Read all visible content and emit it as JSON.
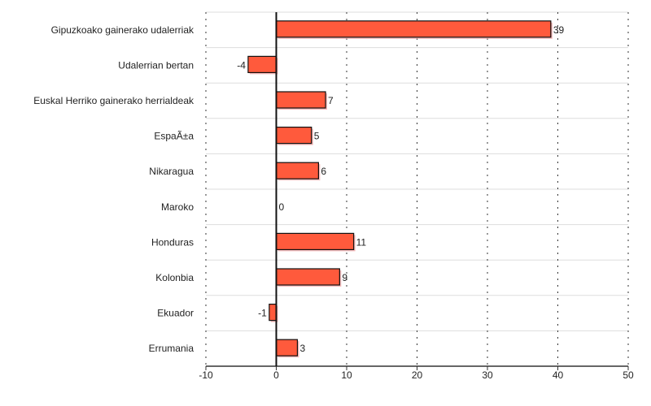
{
  "chart_data": {
    "type": "bar",
    "orientation": "horizontal",
    "categories": [
      "Gipuzkoako gainerako udalerriak",
      "Udalerrian bertan",
      "Euskal Herriko gainerako herrialdeak",
      "EspaÃ±a",
      "Nikaragua",
      "Maroko",
      "Honduras",
      "Kolonbia",
      "Ekuador",
      "Errumania"
    ],
    "values": [
      39,
      -4,
      7,
      5,
      6,
      0,
      11,
      9,
      -1,
      3
    ],
    "xlim": [
      -10,
      50
    ],
    "xticks": [
      -10,
      0,
      10,
      20,
      30,
      40,
      50
    ],
    "grid": true,
    "bar_color": "#ff5a3c",
    "title": "",
    "xlabel": "",
    "ylabel": ""
  }
}
